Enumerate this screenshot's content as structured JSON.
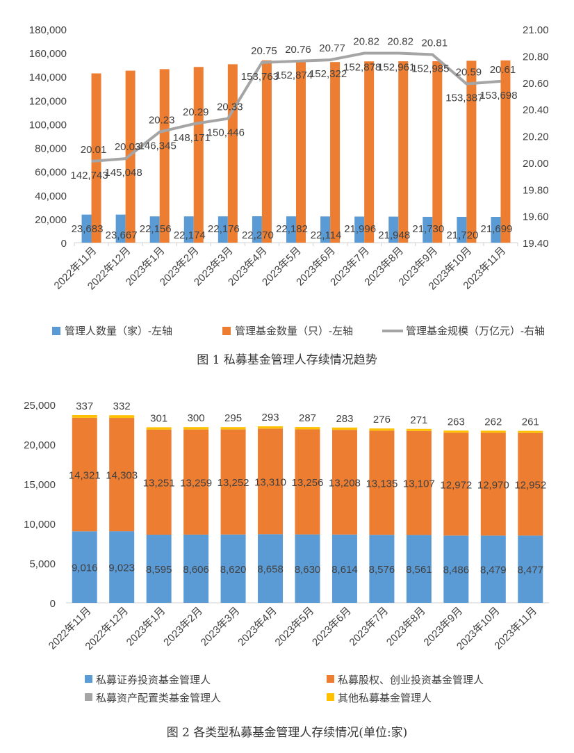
{
  "chart_data": [
    {
      "type": "bar",
      "title": "",
      "caption": "图 1  私募基金管理人存续情况趋势",
      "categories": [
        "2022年11月",
        "2022年12月",
        "2023年1月",
        "2023年2月",
        "2023年3月",
        "2023年4月",
        "2023年5月",
        "2023年6月",
        "2023年7月",
        "2023年8月",
        "2023年9月",
        "2023年10月",
        "2023年11月"
      ],
      "ylim_left": [
        0,
        180000
      ],
      "yticks_left": [
        "0",
        "20,000",
        "40,000",
        "60,000",
        "80,000",
        "100,000",
        "120,000",
        "140,000",
        "160,000",
        "180,000"
      ],
      "ylim_right": [
        19.4,
        21.0
      ],
      "yticks_right": [
        "19.40",
        "19.60",
        "19.80",
        "20.00",
        "20.20",
        "20.40",
        "20.60",
        "20.80",
        "21.00"
      ],
      "legend_position": "bottom",
      "series": [
        {
          "name": "管理人数量（家）-左轴",
          "type": "bar",
          "axis": "left",
          "color": "#5B9BD5",
          "values": [
            23683,
            23667,
            22156,
            22174,
            22176,
            22270,
            22182,
            22114,
            21996,
            21948,
            21730,
            21720,
            21699
          ],
          "labels": [
            "23,683",
            "23,667",
            "22,156",
            "22,174",
            "22,176",
            "22,270",
            "22,182",
            "22,114",
            "21,996",
            "21,948",
            "21,730",
            "21,720",
            "21,699"
          ]
        },
        {
          "name": "管理基金数量（只）-左轴",
          "type": "bar",
          "axis": "left",
          "color": "#ED7D31",
          "values": [
            142743,
            145048,
            146345,
            148171,
            150446,
            153763,
            152874,
            152322,
            152878,
            152961,
            152985,
            153387,
            153698
          ],
          "labels": [
            "142,743",
            "145,048",
            "146,345",
            "148,171",
            "150,446",
            "153,763",
            "152,874",
            "152,322",
            "152,878",
            "152,961",
            "152,985",
            "153,387",
            "153,698"
          ]
        },
        {
          "name": "管理基金规模（万亿元）-右轴",
          "type": "line",
          "axis": "right",
          "color": "#A5A5A5",
          "values": [
            20.01,
            20.03,
            20.23,
            20.29,
            20.33,
            20.75,
            20.76,
            20.77,
            20.82,
            20.82,
            20.81,
            20.59,
            20.61
          ],
          "labels": [
            "20.01",
            "20.03",
            "20.23",
            "20.29",
            "20.33",
            "20.75",
            "20.76",
            "20.77",
            "20.82",
            "20.82",
            "20.81",
            "20.59",
            "20.61"
          ]
        }
      ]
    },
    {
      "type": "bar",
      "stacked": true,
      "title": "",
      "caption": "图 2  各类型私募基金管理人存续情况(单位:家)",
      "categories": [
        "2022年11月",
        "2022年12月",
        "2023年1月",
        "2023年2月",
        "2023年3月",
        "2023年4月",
        "2023年5月",
        "2023年6月",
        "2023年7月",
        "2023年8月",
        "2023年9月",
        "2023年10月",
        "2023年11月"
      ],
      "ylim": [
        0,
        25000
      ],
      "yticks": [
        "0",
        "5,000",
        "10,000",
        "15,000",
        "20,000",
        "25,000"
      ],
      "legend_position": "bottom",
      "series": [
        {
          "name": "私募证券投资基金管理人",
          "color": "#5B9BD5",
          "values": [
            9016,
            9023,
            8595,
            8606,
            8620,
            8658,
            8630,
            8614,
            8576,
            8561,
            8486,
            8479,
            8477
          ],
          "labels": [
            "9,016",
            "9,023",
            "8,595",
            "8,606",
            "8,620",
            "8,658",
            "8,630",
            "8,614",
            "8,576",
            "8,561",
            "8,486",
            "8,479",
            "8,477"
          ]
        },
        {
          "name": "私募股权、创业投资基金管理人",
          "color": "#ED7D31",
          "values": [
            14321,
            14303,
            13251,
            13259,
            13252,
            13310,
            13256,
            13208,
            13135,
            13107,
            12972,
            12970,
            12952
          ],
          "labels": [
            "14,321",
            "14,303",
            "13,251",
            "13,259",
            "13,252",
            "13,310",
            "13,256",
            "13,208",
            "13,135",
            "13,107",
            "12,972",
            "12,970",
            "12,952"
          ]
        },
        {
          "name": "私募资产配置类基金管理人",
          "color": "#A5A5A5",
          "values": [
            9,
            9,
            9,
            9,
            9,
            9,
            9,
            9,
            9,
            9,
            9,
            9,
            9
          ],
          "labels": []
        },
        {
          "name": "其他私募基金管理人",
          "color": "#FFC000",
          "values": [
            337,
            332,
            301,
            300,
            295,
            293,
            287,
            283,
            276,
            271,
            263,
            262,
            261
          ],
          "labels": [
            "337",
            "332",
            "301",
            "300",
            "295",
            "293",
            "287",
            "283",
            "276",
            "271",
            "263",
            "262",
            "261"
          ]
        }
      ]
    }
  ]
}
